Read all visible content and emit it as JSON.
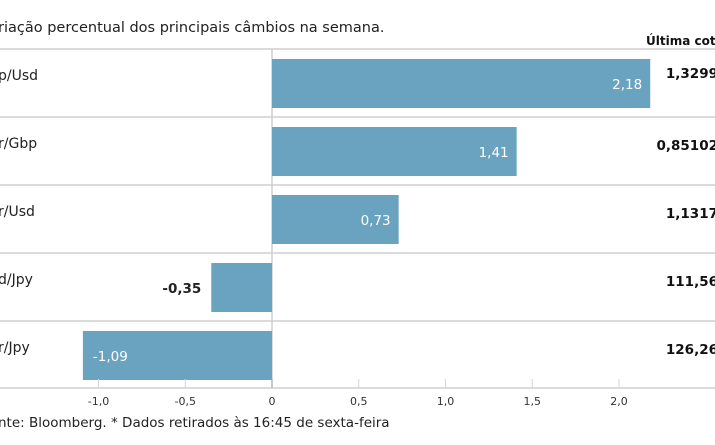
{
  "chart_data": {
    "type": "bar",
    "orientation": "horizontal",
    "title": "riação percentual dos principais câmbios na semana.",
    "column_header": "Última cotaç",
    "categories": [
      "p/Usd",
      "r/Gbp",
      "r/Usd",
      "d/Jpy",
      "r/Jpy"
    ],
    "values": [
      2.18,
      1.41,
      0.73,
      -0.35,
      -1.09
    ],
    "value_labels": [
      "2,18",
      "1,41",
      "0,73",
      "-0,35",
      "-1,09"
    ],
    "last_quote_labels": [
      "1,3299",
      "0,85102",
      "1,1317",
      "111,56",
      "126,26"
    ],
    "xlim": [
      -1.1,
      2.3
    ],
    "xticks": [
      -1.0,
      -0.5,
      0,
      0.5,
      1.0,
      1.5,
      2.0
    ],
    "xtick_labels": [
      "-1,0",
      "-0,5",
      "0",
      "0,5",
      "1,0",
      "1,5",
      "2,0"
    ],
    "grid": false,
    "bar_color": "#6aa3bf",
    "source": "nte: Bloomberg.  * Dados retirados às 16:45 de sexta-feira"
  }
}
